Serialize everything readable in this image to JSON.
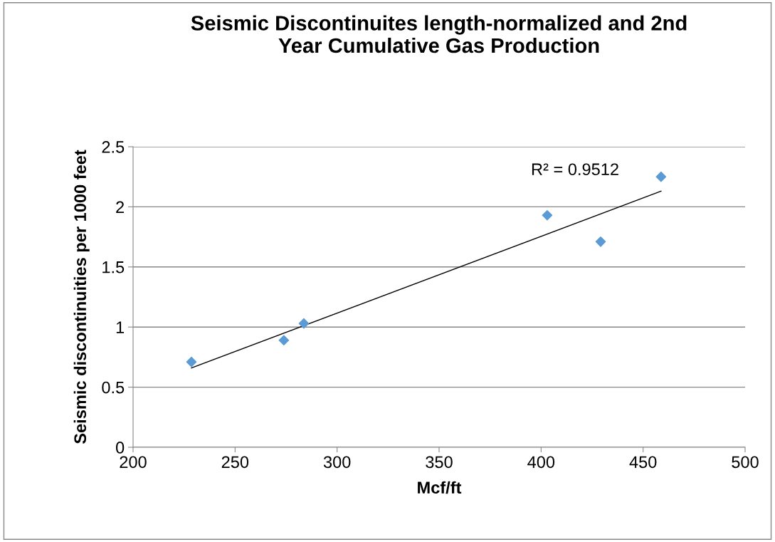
{
  "chart_data": {
    "type": "scatter",
    "title": "Seismic Discontinuites length-normalized and 2nd\nYear Cumulative Gas Production",
    "xlabel": "Mcf/ft",
    "ylabel": "Seismic discontinuities per 1000 feet",
    "series": [
      {
        "color": "#5b9bd5",
        "marker": "diamond",
        "x": [
          228.6,
          273.9,
          283.7,
          403.0,
          429.2,
          458.8
        ],
        "values": [
          0.71,
          0.89,
          1.03,
          1.93,
          1.71,
          2.25
        ]
      },
      {
        "type": "line",
        "color": "#000000",
        "marker": "none",
        "line_style": "solid",
        "x": [
          228.6,
          458.8
        ],
        "values": [
          0.66,
          2.13
        ]
      }
    ],
    "annotations": [
      "R² = 0.9512"
    ],
    "xlim": [
      200,
      500
    ],
    "xticks": [
      200,
      250,
      300,
      350,
      400,
      450,
      500
    ],
    "ylim": [
      0,
      2.5
    ],
    "yticks": [
      0,
      0.5,
      1,
      1.5,
      2,
      2.5
    ],
    "grid": "y",
    "legend": false
  }
}
